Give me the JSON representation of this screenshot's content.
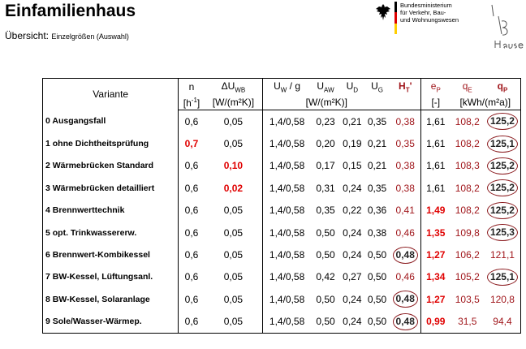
{
  "header": {
    "title": "Einfamilienhaus",
    "subtitle_prefix": "Übersicht:",
    "subtitle_detail": "Einzelgrößen (Auswahl)",
    "ministry": "Bundesministerium\nfür Verkehr, Bau-\nund Wohnungswesen",
    "flag_colors": [
      "#000000",
      "#dd0000",
      "#ffce00"
    ]
  },
  "table": {
    "headers": {
      "variante": "Variante",
      "n": "n",
      "n_unit": "[h",
      "n_unit_sup": "-1",
      "n_unit_end": "]",
      "du": "ΔU",
      "du_sub": "WB",
      "du_unit": "[W/(m²K)]",
      "uw": "U",
      "uw_sub": "W",
      "uw_rest": " / g",
      "uaw": "U",
      "uaw_sub": "AW",
      "ud": "U",
      "ud_sub": "D",
      "ug": "U",
      "ug_sub": "G",
      "u_unit": "[W/(m²K)]",
      "ht": "H",
      "ht_sub": "T",
      "ht_rest": "'",
      "ep": "e",
      "ep_sub": "P",
      "ep_unit": "[-]",
      "qe": "q",
      "qe_sub": "E",
      "qp": "q",
      "qp_sub": "P",
      "q_unit": "[kWh/(m²a)]"
    },
    "rows": [
      {
        "variante": "0 Ausgangsfall",
        "n": "0,6",
        "du": "0,05",
        "uw": "1,4/0,58",
        "uaw": "0,23",
        "ud": "0,21",
        "ug": "0,35",
        "ht": "0,38",
        "ep": "1,61",
        "qe": "108,2",
        "qp": "125,2"
      },
      {
        "variante": "1 ohne Dichtheitsprüfung",
        "n": "0,7",
        "du": "0,05",
        "uw": "1,4/0,58",
        "uaw": "0,20",
        "ud": "0,19",
        "ug": "0,21",
        "ht": "0,35",
        "ep": "1,61",
        "qe": "108,2",
        "qp": "125,1"
      },
      {
        "variante": "2 Wärmebrücken Standard",
        "n": "0,6",
        "du": "0,10",
        "uw": "1,4/0,58",
        "uaw": "0,17",
        "ud": "0,15",
        "ug": "0,21",
        "ht": "0,38",
        "ep": "1,61",
        "qe": "108,3",
        "qp": "125,2"
      },
      {
        "variante": "3 Wärmebrücken detailliert",
        "n": "0,6",
        "du": "0,02",
        "uw": "1,4/0,58",
        "uaw": "0,31",
        "ud": "0,24",
        "ug": "0,35",
        "ht": "0,38",
        "ep": "1,61",
        "qe": "108,2",
        "qp": "125,2"
      },
      {
        "variante": "4 Brennwerttechnik",
        "n": "0,6",
        "du": "0,05",
        "uw": "1,4/0,58",
        "uaw": "0,35",
        "ud": "0,22",
        "ug": "0,36",
        "ht": "0,41",
        "ep": "1,49",
        "qe": "108,2",
        "qp": "125,2"
      },
      {
        "variante": "5 opt. Trinkwassererw.",
        "n": "0,6",
        "du": "0,05",
        "uw": "1,4/0,58",
        "uaw": "0,50",
        "ud": "0,24",
        "ug": "0,38",
        "ht": "0,46",
        "ep": "1,35",
        "qe": "109,8",
        "qp": "125,3"
      },
      {
        "variante": "6 Brennwert-Kombikessel",
        "n": "0,6",
        "du": "0,05",
        "uw": "1,4/0,58",
        "uaw": "0,50",
        "ud": "0,24",
        "ug": "0,50",
        "ht": "0,48",
        "ep": "1,27",
        "qe": "106,2",
        "qp": "121,1"
      },
      {
        "variante": "7 BW-Kessel, Lüftungsanl.",
        "n": "0,6",
        "du": "0,05",
        "uw": "1,4/0,58",
        "uaw": "0,42",
        "ud": "0,27",
        "ug": "0,50",
        "ht": "0,46",
        "ep": "1,34",
        "qe": "105,2",
        "qp": "125,1"
      },
      {
        "variante": "8 BW-Kessel, Solaranlage",
        "n": "0,6",
        "du": "0,05",
        "uw": "1,4/0,58",
        "uaw": "0,50",
        "ud": "0,24",
        "ug": "0,50",
        "ht": "0,48",
        "ep": "1,27",
        "qe": "103,5",
        "qp": "120,8"
      },
      {
        "variante": "9 Sole/Wasser-Wärmep.",
        "n": "0,6",
        "du": "0,05",
        "uw": "1,4/0,58",
        "uaw": "0,50",
        "ud": "0,24",
        "ug": "0,50",
        "ht": "0,48",
        "ep": "0,99",
        "qe": "31,5",
        "qp": "94,4"
      }
    ]
  }
}
